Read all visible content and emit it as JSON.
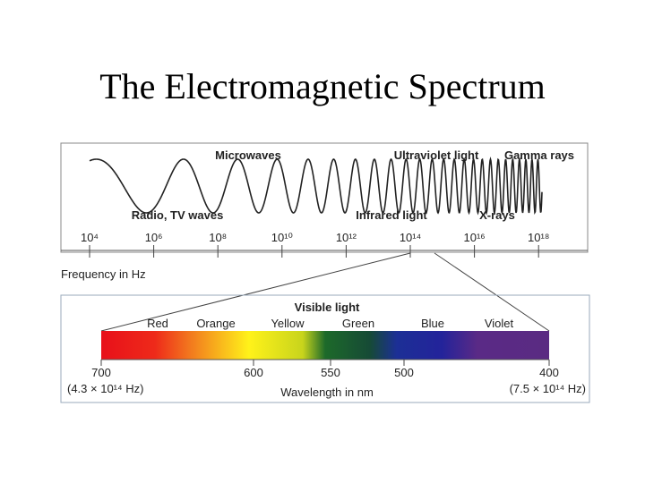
{
  "header": {
    "title": "The Electromagnetic Spectrum"
  },
  "spectrum": {
    "upper_labels": [
      "Microwaves",
      "Ultraviolet light",
      "Gamma rays"
    ],
    "lower_labels": [
      "Radio, TV waves",
      "Infrared light",
      "X-rays"
    ],
    "frequency_ticks": [
      "10⁴",
      "10⁶",
      "10⁸",
      "10¹⁰",
      "10¹²",
      "10¹⁴",
      "10¹⁶",
      "10¹⁸"
    ],
    "frequency_axis_label": "Frequency in Hz"
  },
  "visible": {
    "title": "Visible light",
    "colors": [
      "Red",
      "Orange",
      "Yellow",
      "Green",
      "Blue",
      "Violet"
    ],
    "wavelength_ticks": [
      "700",
      "600",
      "550",
      "500",
      "400"
    ],
    "left_note": "(4.3 × 10¹⁴ Hz)",
    "right_note": "(7.5 × 10¹⁴ Hz)",
    "wavelength_axis_label": "Wavelength in nm"
  }
}
